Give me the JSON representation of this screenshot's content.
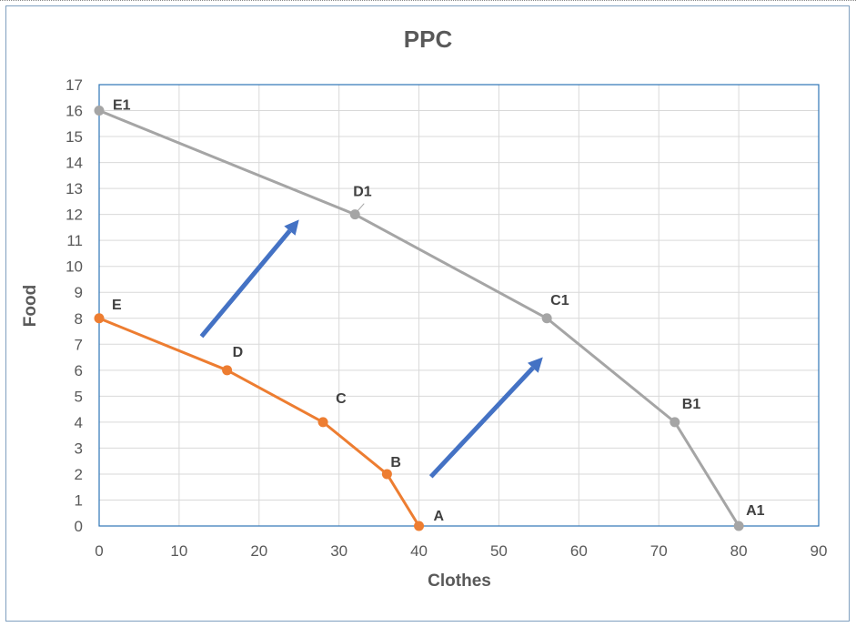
{
  "chart_data": {
    "type": "scatter",
    "title": "PPC",
    "xlabel": "Clothes",
    "ylabel": "Food",
    "xlim": [
      0,
      90
    ],
    "ylim": [
      0,
      17
    ],
    "x_ticks": [
      0,
      10,
      20,
      30,
      40,
      50,
      60,
      70,
      80,
      90
    ],
    "y_ticks": [
      0,
      1,
      2,
      3,
      4,
      5,
      6,
      7,
      8,
      9,
      10,
      11,
      12,
      13,
      14,
      15,
      16,
      17
    ],
    "grid": true,
    "legend": "none",
    "series": [
      {
        "color": "#ed7d31",
        "points": [
          {
            "label": "A",
            "x": 40,
            "y": 0
          },
          {
            "label": "B",
            "x": 36,
            "y": 2
          },
          {
            "label": "C",
            "x": 28,
            "y": 4
          },
          {
            "label": "D",
            "x": 16,
            "y": 6
          },
          {
            "label": "E",
            "x": 0,
            "y": 8
          }
        ]
      },
      {
        "color": "#a5a5a5",
        "points": [
          {
            "label": "A1",
            "x": 80,
            "y": 0
          },
          {
            "label": "B1",
            "x": 72,
            "y": 4
          },
          {
            "label": "C1",
            "x": 56,
            "y": 8
          },
          {
            "label": "D1",
            "x": 32,
            "y": 12
          },
          {
            "label": "E1",
            "x": 0,
            "y": 16
          }
        ]
      }
    ],
    "annotations": [
      {
        "type": "arrow",
        "color": "#4472c4",
        "from": [
          12.8,
          7.3
        ],
        "to": [
          25,
          11.8
        ]
      },
      {
        "type": "arrow",
        "color": "#4472c4",
        "from": [
          41.5,
          1.9
        ],
        "to": [
          55.5,
          6.5
        ]
      }
    ]
  }
}
